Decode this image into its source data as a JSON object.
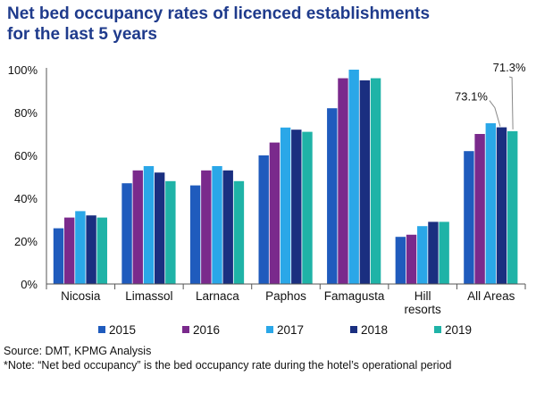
{
  "title_lines": [
    "Net bed occupancy rates of licenced establishments",
    "for the last 5 years"
  ],
  "chart_data": {
    "type": "bar",
    "categories": [
      "Nicosia",
      "Limassol",
      "Larnaca",
      "Paphos",
      "Famagusta",
      "Hill resorts",
      "All Areas"
    ],
    "category_lines": [
      [
        "Nicosia"
      ],
      [
        "Limassol"
      ],
      [
        "Larnaca"
      ],
      [
        "Paphos"
      ],
      [
        "Famagusta"
      ],
      [
        "Hill",
        "resorts"
      ],
      [
        "All Areas"
      ]
    ],
    "series": [
      {
        "name": "2015",
        "color": "#1f5bbd",
        "values": [
          26,
          47,
          46,
          60,
          82,
          22,
          62
        ]
      },
      {
        "name": "2016",
        "color": "#7a2a8c",
        "values": [
          31,
          53,
          53,
          66,
          96,
          23,
          70
        ]
      },
      {
        "name": "2017",
        "color": "#2aa7e8",
        "values": [
          34,
          55,
          55,
          73,
          100,
          27,
          75
        ]
      },
      {
        "name": "2018",
        "color": "#1a2f80",
        "values": [
          32,
          52,
          53,
          72,
          95,
          29,
          73.1
        ]
      },
      {
        "name": "2019",
        "color": "#1fb3a7",
        "values": [
          31,
          48,
          48,
          71,
          96,
          29,
          71.3
        ]
      }
    ],
    "ylim": [
      0,
      100
    ],
    "yticks": [
      "0%",
      "20%",
      "40%",
      "60%",
      "80%",
      "100%"
    ],
    "ytick_values": [
      0,
      20,
      40,
      60,
      80,
      100
    ],
    "annotations": [
      {
        "text": "73.1%",
        "category": "All Areas",
        "series": "2018"
      },
      {
        "text": "71.3%",
        "category": "All Areas",
        "series": "2019"
      }
    ],
    "legend_position": "bottom",
    "grid": false
  },
  "footer": {
    "source": "Source: DMT, KPMG Analysis",
    "note": "*Note: “Net bed occupancy” is the bed occupancy rate during the hotel’s operational period"
  }
}
